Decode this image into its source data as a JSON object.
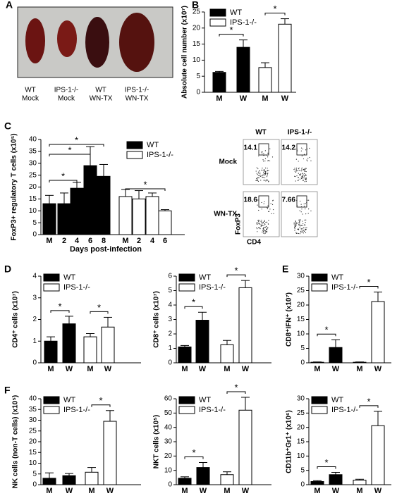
{
  "panel_labels": [
    "A",
    "B",
    "C",
    "D",
    "E",
    "F"
  ],
  "photo": {
    "labels": [
      [
        "WT",
        "Mock"
      ],
      [
        "IPS-1-/-",
        "Mock"
      ],
      [
        "WT",
        "WN-TX"
      ],
      [
        "IPS-1-/-",
        "WN-TX"
      ]
    ]
  },
  "flow": {
    "columns": [
      "WT",
      "IPS-1-/-"
    ],
    "rows": [
      "Mock",
      "WN-TX"
    ],
    "percentages": [
      [
        14.1,
        14.2
      ],
      [
        18.6,
        7.66
      ]
    ],
    "y_label": "FoxP3",
    "x_label": "CD4"
  },
  "chart_data": [
    {
      "type": "bar",
      "y_label": "Absolute cell number (x10⁷)",
      "categories": [
        "M",
        "W",
        "M",
        "W"
      ],
      "series": [
        {
          "name": "WT",
          "color": "#000000",
          "values": [
            6.2,
            14,
            null,
            null
          ],
          "errors": [
            0.3,
            2.3,
            null,
            null
          ]
        },
        {
          "name": "IPS-1-/-",
          "color": "#ffffff",
          "values": [
            null,
            null,
            7.7,
            21.2
          ],
          "errors": [
            null,
            null,
            1.5,
            1.7
          ]
        }
      ],
      "ylim": [
        0,
        25
      ],
      "yticks": [
        0,
        5,
        10,
        15,
        20,
        25
      ],
      "annotations": [
        "*",
        "*"
      ],
      "legend": "upper left"
    },
    {
      "type": "bar",
      "y_label": "FoxP3+ regulatory T cells (x10⁵)",
      "x_label": "Days post-infection",
      "categories": [
        "M",
        "2",
        "4",
        "6",
        "8",
        "M",
        "2",
        "4",
        "6"
      ],
      "series": [
        {
          "name": "WT",
          "color": "#000000",
          "values": [
            13,
            13,
            19.5,
            29,
            24.5,
            null,
            null,
            null,
            null
          ],
          "errors": [
            3.5,
            4.5,
            2.5,
            8,
            5,
            null,
            null,
            null,
            null
          ]
        },
        {
          "name": "IPS-1-/-",
          "color": "#ffffff",
          "values": [
            null,
            null,
            null,
            null,
            null,
            16,
            15,
            16,
            10
          ],
          "errors": [
            null,
            null,
            null,
            null,
            null,
            3,
            3.5,
            1.5,
            0.5
          ]
        }
      ],
      "ylim": [
        0,
        40
      ],
      "yticks": [
        0,
        5,
        10,
        15,
        20,
        25,
        30,
        35,
        40
      ],
      "annotations": [
        "*",
        "*",
        "*",
        "*"
      ],
      "legend": "upper right"
    },
    {
      "type": "bar",
      "y_label": "CD4⁺ cells (x10⁷)",
      "categories": [
        "M",
        "W",
        "M",
        "W"
      ],
      "series": [
        {
          "name": "WT",
          "color": "#000000",
          "values": [
            1.0,
            1.8,
            null,
            null
          ],
          "errors": [
            0.2,
            0.35,
            null,
            null
          ]
        },
        {
          "name": "IPS-1-/-",
          "color": "#ffffff",
          "values": [
            null,
            null,
            1.2,
            1.65
          ],
          "errors": [
            null,
            null,
            0.15,
            0.45
          ]
        }
      ],
      "ylim": [
        0,
        4
      ],
      "yticks": [
        0,
        1,
        2,
        3,
        4
      ],
      "annotations": [
        "*",
        "*"
      ],
      "legend": "upper left"
    },
    {
      "type": "bar",
      "y_label": "CD8⁺ cells (x10⁷)",
      "categories": [
        "M",
        "W",
        "M",
        "W"
      ],
      "series": [
        {
          "name": "WT",
          "color": "#000000",
          "values": [
            1.1,
            2.95,
            null,
            null
          ],
          "errors": [
            0.1,
            0.55,
            null,
            null
          ]
        },
        {
          "name": "IPS-1-/-",
          "color": "#ffffff",
          "values": [
            null,
            null,
            1.25,
            5.2
          ],
          "errors": [
            null,
            null,
            0.3,
            0.5
          ]
        }
      ],
      "ylim": [
        0,
        6
      ],
      "yticks": [
        0,
        1,
        2,
        3,
        4,
        5,
        6
      ],
      "annotations": [
        "*",
        "*"
      ],
      "legend": "upper left"
    },
    {
      "type": "bar",
      "y_label": "CD8⁺IFN⁺ (x10⁷)",
      "categories": [
        "M",
        "W",
        "M",
        "W"
      ],
      "series": [
        {
          "name": "WT",
          "color": "#000000",
          "values": [
            0.2,
            5.3,
            null,
            null
          ],
          "errors": [
            0.1,
            2.7,
            null,
            null
          ]
        },
        {
          "name": "IPS-1-/-",
          "color": "#ffffff",
          "values": [
            null,
            null,
            0.2,
            21.2
          ],
          "errors": [
            null,
            null,
            0.1,
            3.3
          ]
        }
      ],
      "ylim": [
        0,
        30
      ],
      "yticks": [
        0,
        5,
        10,
        15,
        20,
        25,
        30
      ],
      "annotations": [
        "*",
        "*"
      ],
      "legend": "upper left"
    },
    {
      "type": "bar",
      "y_label": "NK cells (non-T cells) (x10⁵)",
      "categories": [
        "M",
        "W",
        "M",
        "W"
      ],
      "series": [
        {
          "name": "WT",
          "color": "#000000",
          "values": [
            3,
            4.2,
            null,
            null
          ],
          "errors": [
            2.5,
            1,
            null,
            null
          ]
        },
        {
          "name": "IPS-1-/-",
          "color": "#ffffff",
          "values": [
            null,
            null,
            5.8,
            29.5
          ],
          "errors": [
            null,
            null,
            2.2,
            5
          ]
        }
      ],
      "ylim": [
        0,
        40
      ],
      "yticks": [
        0,
        5,
        10,
        15,
        20,
        25,
        30,
        35,
        40
      ],
      "annotations": [
        "*"
      ],
      "legend": "upper left"
    },
    {
      "type": "bar",
      "y_label": "NKT cells (x10⁵)",
      "categories": [
        "M",
        "W",
        "M",
        "W"
      ],
      "series": [
        {
          "name": "WT",
          "color": "#000000",
          "values": [
            4.5,
            12,
            null,
            null
          ],
          "errors": [
            1,
            3.5,
            null,
            null
          ]
        },
        {
          "name": "IPS-1-/-",
          "color": "#ffffff",
          "values": [
            null,
            null,
            7,
            52
          ],
          "errors": [
            null,
            null,
            2,
            9
          ]
        }
      ],
      "ylim": [
        0,
        60
      ],
      "yticks": [
        0,
        10,
        20,
        30,
        40,
        50,
        60
      ],
      "annotations": [
        "*",
        "*"
      ],
      "legend": "upper left"
    },
    {
      "type": "bar",
      "y_label": "CD11b⁺Gr1⁺ (x10⁶)",
      "categories": [
        "M",
        "W",
        "M",
        "W"
      ],
      "series": [
        {
          "name": "WT",
          "color": "#000000",
          "values": [
            1.1,
            3.5,
            null,
            null
          ],
          "errors": [
            0.3,
            0.8,
            null,
            null
          ]
        },
        {
          "name": "IPS-1-/-",
          "color": "#ffffff",
          "values": [
            null,
            null,
            1.6,
            20.6
          ],
          "errors": [
            null,
            null,
            0.3,
            5
          ]
        }
      ],
      "ylim": [
        0,
        30
      ],
      "yticks": [
        0,
        5,
        10,
        15,
        20,
        25,
        30
      ],
      "annotations": [
        "*",
        "*"
      ],
      "legend": "upper left"
    }
  ]
}
